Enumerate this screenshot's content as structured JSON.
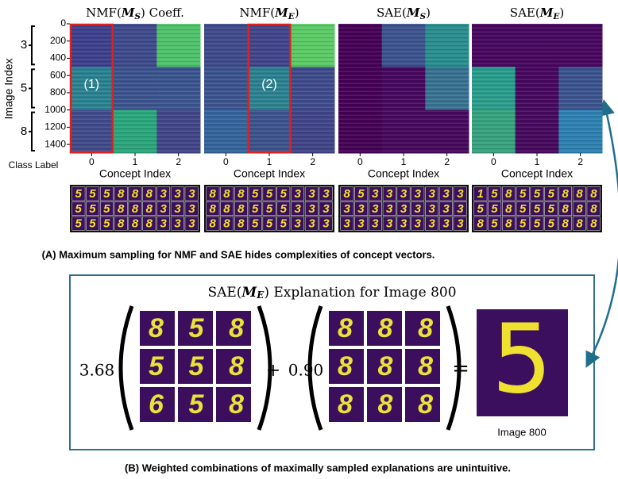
{
  "y_axis_label": "Image Index",
  "yticks": [
    0,
    200,
    400,
    600,
    800,
    1000,
    1200,
    1400
  ],
  "image_count": 1500,
  "class_axis_label": "Class Label",
  "classes": [
    "3",
    "5",
    "8"
  ],
  "x_axis_label": "Concept Index",
  "xticks": [
    0,
    1,
    2
  ],
  "panels": [
    {
      "title": {
        "prefix": "NMF(",
        "symbol": "M",
        "subscript": "S",
        "suffix": ") Coeff."
      },
      "highlight_label": "(1)",
      "digits": [
        "555888333",
        "555888333",
        "555888333"
      ]
    },
    {
      "title": {
        "prefix": "NMF(",
        "symbol": "M",
        "subscript": "E",
        "suffix": ")"
      },
      "highlight_label": "(2)",
      "digits": [
        "888555333",
        "888555333",
        "888555333"
      ]
    },
    {
      "title": {
        "prefix": "SAE(",
        "symbol": "M",
        "subscript": "S",
        "suffix": ")"
      },
      "digits": [
        "853333333",
        "333333333",
        "333333333"
      ]
    },
    {
      "title": {
        "prefix": "SAE(",
        "symbol": "M",
        "subscript": "E",
        "suffix": ")"
      },
      "digits": [
        "158555888",
        "558555888",
        "858555888"
      ]
    }
  ],
  "caption_a": "(A) Maximum sampling for NMF and SAE hides complexities of concept vectors.",
  "explanation": {
    "title": {
      "prefix": "SAE(",
      "symbol": "M",
      "subscript": "E",
      "suffix": ") Explanation for Image 800"
    },
    "weight_1": "3.68",
    "grid_1": [
      "858",
      "558",
      "658"
    ],
    "plus": "+",
    "weight_2": "0.90",
    "grid_2": [
      "888",
      "888",
      "888"
    ],
    "equals": "=",
    "image_digit": "5",
    "image_label": "Image 800"
  },
  "caption_b": "(B) Weighted combinations of maximally sampled explanations are unintuitive."
}
